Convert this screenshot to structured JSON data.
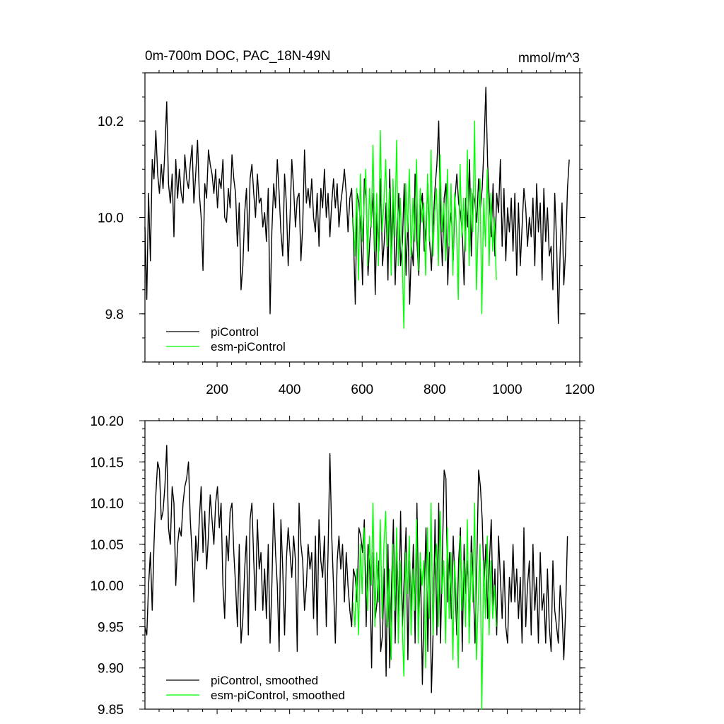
{
  "chart_data": [
    {
      "type": "line",
      "title": "0m-700m DOC, PAC_18N-49N",
      "units": "mmol/m^3",
      "xlabel": "",
      "ylabel": "",
      "xlim": [
        1,
        1200
      ],
      "ylim": [
        9.7,
        10.3
      ],
      "xticks": [
        200,
        400,
        600,
        800,
        1000,
        1200
      ],
      "xtick_labels": [
        "200",
        "400",
        "600",
        "800",
        "1000",
        "1200"
      ],
      "yticks": [
        9.8,
        10.0,
        10.2
      ],
      "ytick_labels": [
        "9.8",
        "10.0",
        "10.2"
      ],
      "legend_position": "bottom-left",
      "series": [
        {
          "name": "piControl",
          "color": "#000000",
          "x_start": 1,
          "x_step": 5,
          "values": [
            9.98,
            9.83,
            10.05,
            9.91,
            10.12,
            10.08,
            10.18,
            10.09,
            10.05,
            10.11,
            10.06,
            10.14,
            10.24,
            10.07,
            10.03,
            10.09,
            9.96,
            10.12,
            10.04,
            10.1,
            10.05,
            10.03,
            10.13,
            10.08,
            10.06,
            10.11,
            10.15,
            10.03,
            10.09,
            10.16,
            10.05,
            10.0,
            9.89,
            10.07,
            10.04,
            10.14,
            10.11,
            10.09,
            10.05,
            10.1,
            10.02,
            10.08,
            10.06,
            10.12,
            10.0,
            9.99,
            10.06,
            10.02,
            10.13,
            10.08,
            10.05,
            9.94,
            10.03,
            9.85,
            9.9,
            10.01,
            10.06,
            9.93,
            10.08,
            10.11,
            10.05,
            10.0,
            10.09,
            10.03,
            10.04,
            9.98,
            10.01,
            9.95,
            10.06,
            9.8,
            9.97,
            10.07,
            10.02,
            10.12,
            10.05,
            9.97,
            9.92,
            10.09,
            10.03,
            9.9,
            10.0,
            10.12,
            10.06,
            9.98,
            10.04,
            10.05,
            9.91,
            9.98,
            10.14,
            10.03,
            10.06,
            10.02,
            10.08,
            10.0,
            9.97,
            10.05,
            9.94,
            10.06,
            10.02,
            10.1,
            10.0,
            10.05,
            9.96,
            10.03,
            10.08,
            10.02,
            10.07,
            9.98,
            10.03,
            10.06,
            10.1,
            10.05,
            9.97,
            10.04,
            10.06,
            9.96,
            9.82,
            10.05,
            10.03,
            9.98,
            9.86,
            10.08,
            10.04,
            9.88,
            9.95,
            10.0,
            10.05,
            9.84,
            10.01,
            9.93,
            10.08,
            9.9,
            9.95,
            10.03,
            9.87,
            10.1,
            9.92,
            10.04,
            9.86,
            9.98,
            10.05,
            9.9,
            9.95,
            10.07,
            9.88,
            10.0,
            9.82,
            9.94,
            9.9,
            10.09,
            9.95,
            9.88,
            10.02,
            10.05,
            9.93,
            9.98,
            10.07,
            9.95,
            9.89,
            9.99,
            10.06,
            10.11,
            10.2,
            10.0,
            9.9,
            10.04,
            10.07,
            9.86,
            9.98,
            10.01,
            9.91,
            10.04,
            10.09,
            10.03,
            10.01,
            9.97,
            9.86,
            10.04,
            9.98,
            10.12,
            9.92,
            10.05,
            10.03,
            9.99,
            10.08,
            10.02,
            10.06,
            10.15,
            10.27,
            10.11,
            10.03,
            9.96,
            10.07,
            9.92,
            10.05,
            10.01,
            10.12,
            9.94,
            10.06,
            9.91,
            10.02,
            9.97,
            10.04,
            9.93,
            10.05,
            9.88,
            10.03,
            9.9,
            9.98,
            10.06,
            10.02,
            9.94,
            10.0,
            9.96,
            10.04,
            9.9,
            10.07,
            9.97,
            10.03,
            9.87,
            10.06,
            9.95,
            10.02,
            9.92,
            9.94,
            9.85,
            10.05,
            9.95,
            9.78,
            9.93,
            10.03,
            9.86,
            9.93,
            10.06,
            10.12
          ]
        },
        {
          "name": "esm-piControl",
          "color": "#00ff00",
          "x_start": 575,
          "x_step": 5,
          "values": [
            10.0,
            9.92,
            10.06,
            9.87,
            10.09,
            9.95,
            10.02,
            10.1,
            9.9,
            10.06,
            9.98,
            10.15,
            9.93,
            10.05,
            9.9,
            10.18,
            9.97,
            10.03,
            10.12,
            9.94,
            10.06,
            9.88,
            10.08,
            9.96,
            10.16,
            9.9,
            10.04,
            9.93,
            9.77,
            10.07,
            9.97,
            10.1,
            9.92,
            10.04,
            9.95,
            10.12,
            9.89,
            10.06,
            9.99,
            10.03,
            9.88,
            10.09,
            9.95,
            10.14,
            9.92,
            10.01,
            10.06,
            9.9,
            10.13,
            9.97,
            10.03,
            9.91,
            10.1,
            9.94,
            10.07,
            9.88,
            10.05,
            9.98,
            9.83,
            10.11,
            9.96,
            10.04,
            9.93,
            10.14,
            9.9,
            10.06,
            9.97,
            10.2,
            9.85,
            9.98,
            10.08,
            9.8,
            10.04,
            9.94,
            10.1,
            9.9,
            10.05,
            9.93,
            10.0,
            9.87
          ]
        }
      ]
    },
    {
      "type": "line",
      "title": "",
      "xlabel": "",
      "ylabel": "",
      "xlim": [
        1,
        1200
      ],
      "ylim": [
        9.85,
        10.2
      ],
      "yticks": [
        9.85,
        9.9,
        9.95,
        10.0,
        10.05,
        10.1,
        10.15,
        10.2
      ],
      "ytick_labels": [
        "9.85",
        "9.90",
        "9.95",
        "10.00",
        "10.05",
        "10.10",
        "10.15",
        "10.20"
      ],
      "legend_position": "bottom-left",
      "series": [
        {
          "name": "piControl, smoothed",
          "color": "#000000",
          "x_start": 1,
          "x_step": 5,
          "values": [
            9.95,
            9.94,
            10.0,
            10.04,
            9.97,
            10.05,
            10.11,
            10.15,
            10.14,
            10.08,
            10.09,
            10.12,
            10.17,
            10.07,
            10.05,
            10.12,
            10.1,
            10.0,
            10.05,
            10.07,
            10.06,
            10.1,
            10.12,
            10.13,
            10.15,
            10.08,
            10.04,
            9.98,
            10.06,
            10.03,
            10.08,
            10.12,
            10.04,
            10.09,
            10.02,
            10.06,
            10.11,
            10.08,
            10.05,
            10.1,
            10.12,
            10.07,
            10.1,
            10.0,
            9.96,
            10.06,
            10.03,
            10.09,
            10.1,
            10.04,
            10.0,
            9.95,
            10.05,
            9.93,
            9.96,
            10.02,
            10.06,
            9.94,
            10.08,
            10.1,
            10.03,
            9.97,
            10.08,
            10.02,
            10.04,
            9.97,
            10.02,
            9.96,
            10.05,
            9.93,
            10.0,
            10.1,
            10.04,
            10.0,
            9.92,
            10.08,
            10.02,
            9.94,
            10.03,
            10.07,
            10.04,
            10.01,
            10.06,
            10.03,
            9.92,
            10.1,
            10.05,
            10.03,
            9.97,
            10.0,
            10.05,
            10.02,
            10.04,
            9.96,
            10.06,
            9.94,
            10.08,
            10.03,
            10.01,
            10.06,
            9.95,
            10.04,
            10.16,
            10.06,
            10.0,
            9.93,
            10.03,
            10.06,
            10.02,
            10.05,
            9.98,
            10.04,
            10.0,
            9.97,
            9.95,
            10.02,
            10.01,
            9.98,
            10.07,
            10.06,
            10.04,
            10.08,
            9.95,
            10.05,
            10.02,
            9.9,
            10.04,
            9.96,
            9.98,
            10.03,
            9.92,
            9.94,
            10.02,
            9.89,
            10.05,
            9.9,
            10.0,
            10.08,
            9.93,
            10.04,
            9.96,
            10.09,
            9.95,
            10.01,
            10.07,
            9.91,
            10.03,
            9.97,
            10.05,
            9.93,
            10.1,
            9.96,
            10.02,
            9.88,
            9.99,
            10.07,
            9.92,
            10.04,
            9.87,
            9.95,
            10.08,
            9.94,
            10.1,
            9.93,
            10.03,
            10.14,
            10.13,
            9.98,
            10.04,
            9.96,
            10.06,
            10.0,
            9.94,
            10.03,
            10.07,
            9.92,
            10.05,
            9.99,
            10.03,
            9.95,
            10.06,
            10.01,
            9.93,
            10.02,
            10.14,
            10.12,
            10.08,
            10.0,
            10.05,
            9.96,
            10.03,
            10.08,
            9.97,
            10.02,
            9.94,
            10.06,
            10.01,
            9.96,
            10.03,
            9.95,
            9.93,
            10.01,
            9.98,
            10.05,
            9.98,
            10.02,
            9.96,
            10.01,
            9.93,
            10.07,
            9.95,
            10.0,
            10.03,
            9.94,
            10.05,
            9.97,
            10.01,
            9.93,
            10.04,
            9.97,
            9.99,
            9.93,
            10.02,
            9.95,
            9.92,
            10.03,
            9.97,
            9.95,
            9.93,
            10.0,
            9.97,
            9.91,
            9.97,
            10.06
          ]
        },
        {
          "name": "esm-piControl, smoothed",
          "color": "#00ff00",
          "x_start": 575,
          "x_step": 5,
          "values": [
            9.98,
            9.95,
            10.02,
            9.94,
            10.05,
            9.99,
            10.07,
            10.02,
            9.97,
            10.06,
            10.0,
            10.1,
            9.95,
            10.04,
            9.98,
            10.08,
            9.96,
            10.05,
            10.09,
            9.95,
            10.02,
            9.91,
            10.05,
            9.97,
            10.07,
            9.93,
            10.03,
            9.96,
            9.89,
            10.04,
            9.99,
            10.06,
            9.94,
            10.02,
            9.97,
            10.08,
            9.93,
            10.04,
            10.0,
            10.03,
            9.9,
            10.07,
            9.96,
            10.1,
            9.94,
            10.01,
            10.05,
            9.95,
            10.09,
            9.99,
            10.03,
            9.93,
            10.07,
            9.96,
            10.04,
            9.91,
            10.03,
            9.98,
            9.9,
            10.06,
            9.97,
            10.03,
            9.95,
            10.08,
            9.93,
            10.04,
            9.98,
            10.1,
            9.91,
            9.98,
            10.05,
            9.85,
            10.03,
            9.96,
            10.06,
            9.94,
            10.03,
            9.96,
            10.0,
            9.95
          ]
        }
      ]
    }
  ]
}
